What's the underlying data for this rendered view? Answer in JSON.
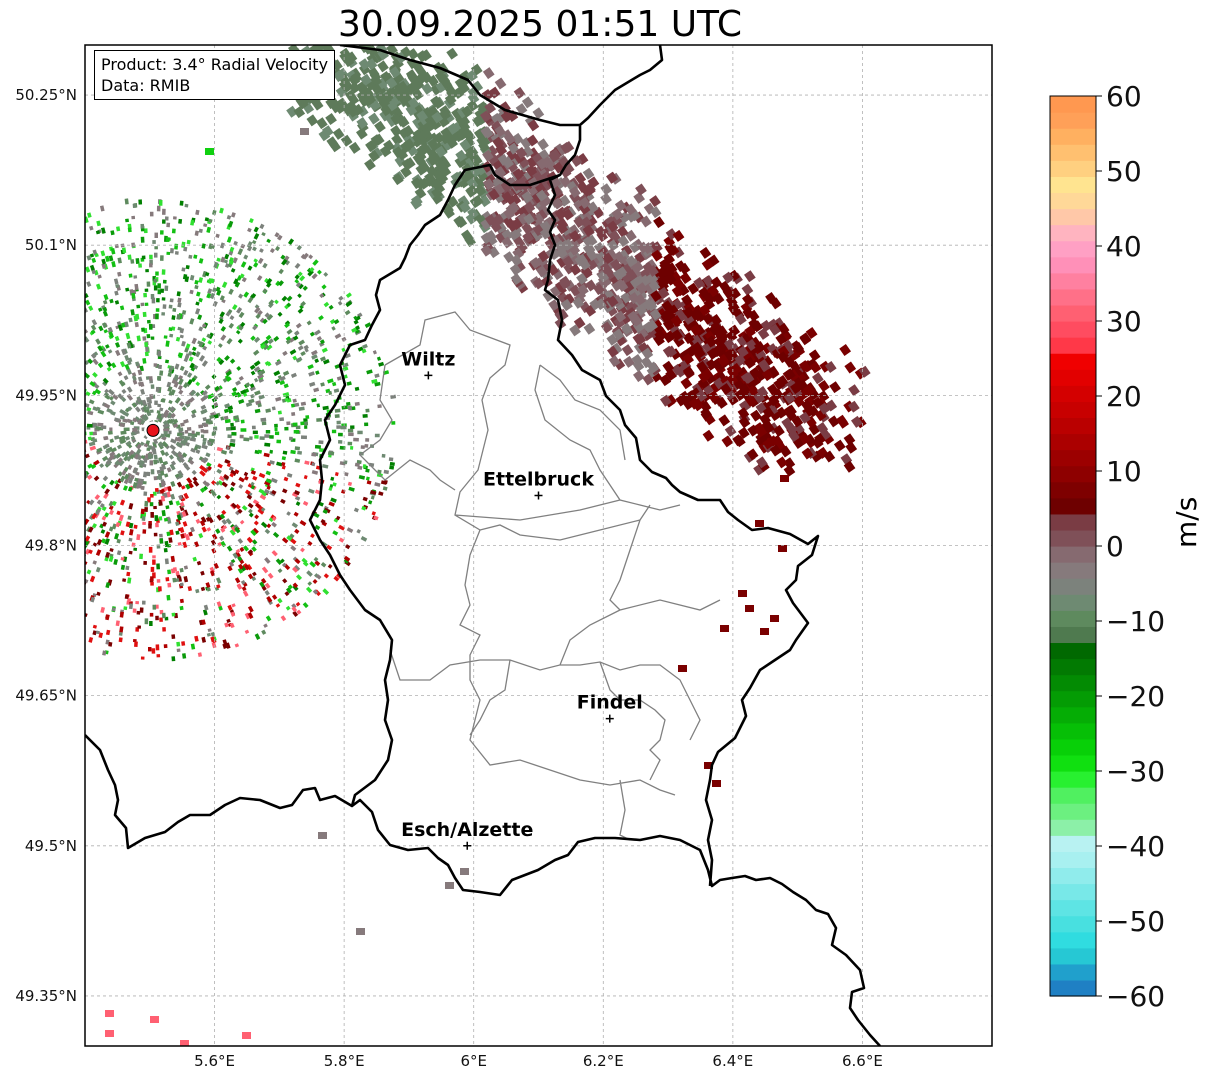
{
  "title": "30.09.2025 01:51 UTC",
  "info": {
    "product": "Product: 3.4° Radial Velocity",
    "data": "Data: RMIB"
  },
  "map": {
    "lon_ticks": [
      "5.6°E",
      "5.8°E",
      "6°E",
      "6.2°E",
      "6.4°E",
      "6.6°E"
    ],
    "lat_ticks": [
      "50.25°N",
      "50.1°N",
      "49.95°N",
      "49.8°N",
      "49.65°N",
      "49.5°N",
      "49.35°N"
    ],
    "lon_tick_values": [
      5.6,
      5.8,
      6.0,
      6.2,
      6.4,
      6.6
    ],
    "lat_tick_values": [
      50.25,
      50.1,
      49.95,
      49.8,
      49.65,
      49.5,
      49.35
    ],
    "lon_range": [
      5.4,
      6.8
    ],
    "lat_range": [
      49.3,
      50.3
    ],
    "grid": true,
    "country_border_color": "#000000",
    "district_border_color": "#808080"
  },
  "cities": [
    {
      "name": "Wiltz",
      "lon": 5.93,
      "lat": 49.97
    },
    {
      "name": "Ettelbruck",
      "lon": 6.1,
      "lat": 49.85
    },
    {
      "name": "Findel",
      "lon": 6.21,
      "lat": 49.627
    },
    {
      "name": "Esch/Alzette",
      "lon": 5.99,
      "lat": 49.5
    }
  ],
  "radar_site": {
    "lon": 5.505,
    "lat": 49.915,
    "color": "#e8141c"
  },
  "colorbar": {
    "label": "m/s",
    "min": -60,
    "max": 60,
    "ticks": [
      "60",
      "50",
      "40",
      "30",
      "20",
      "10",
      "0",
      "−10",
      "−20",
      "−30",
      "−40",
      "−50",
      "−60"
    ],
    "tick_values": [
      60,
      50,
      40,
      30,
      20,
      10,
      0,
      -10,
      -20,
      -30,
      -40,
      -50,
      -60
    ],
    "colors": [
      "#1f80c4",
      "#20a0cc",
      "#26c8d4",
      "#30dce0",
      "#48e0e0",
      "#5ee4e4",
      "#78e8e8",
      "#90ecec",
      "#a8f0f0",
      "#b8f2f2",
      "#8cf0a8",
      "#6cf080",
      "#50f060",
      "#28f030",
      "#10e010",
      "#08d008",
      "#06bf06",
      "#05ad05",
      "#049c04",
      "#038b03",
      "#027a02",
      "#016901",
      "#4f7a4f",
      "#5e8a5e",
      "#6e8a72",
      "#7c827c",
      "#867a7c",
      "#866a70",
      "#7f5058",
      "#7a3c44",
      "#6e0000",
      "#7e0000",
      "#8e0000",
      "#9c0000",
      "#ab0000",
      "#ba0000",
      "#c80000",
      "#d40000",
      "#e20000",
      "#f00000",
      "#ff3848",
      "#ff4c60",
      "#ff6072",
      "#ff7088",
      "#ff80a0",
      "#ff90b8",
      "#ffa0c4",
      "#ffb4c0",
      "#ffc8a8",
      "#ffd898",
      "#ffe490",
      "#ffd080",
      "#ffc070",
      "#ffb060",
      "#ffa058",
      "#ff9850"
    ]
  }
}
